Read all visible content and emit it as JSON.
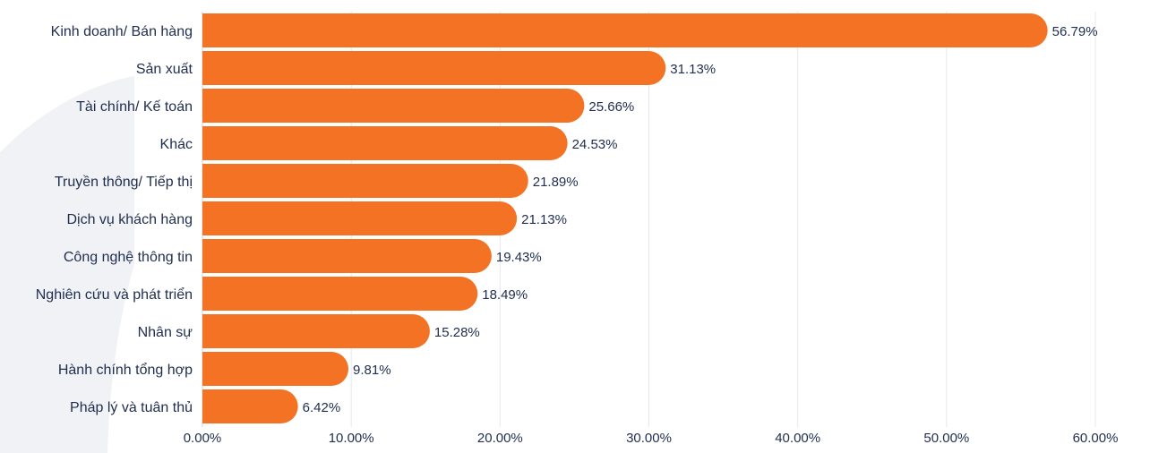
{
  "chart_data": {
    "type": "bar",
    "orientation": "horizontal",
    "categories": [
      "Kinh doanh/ Bán hàng",
      "Sản xuất",
      "Tài chính/ Kế toán",
      "Khác",
      "Truyền thông/ Tiếp thị",
      "Dịch vụ khách hàng",
      "Công nghệ thông tin",
      "Nghiên cứu và phát triển",
      "Nhân sự",
      "Hành chính tổng hợp",
      "Pháp lý và tuân thủ"
    ],
    "values": [
      56.79,
      31.13,
      25.66,
      24.53,
      21.89,
      21.13,
      19.43,
      18.49,
      15.28,
      9.81,
      6.42
    ],
    "value_labels": [
      "56.79%",
      "31.13%",
      "25.66%",
      "24.53%",
      "21.89%",
      "21.13%",
      "19.43%",
      "18.49%",
      "15.28%",
      "9.81%",
      "6.42%"
    ],
    "xlim": [
      0,
      60
    ],
    "x_ticks": [
      0,
      10,
      20,
      30,
      40,
      50,
      60
    ],
    "x_tick_labels": [
      "0.00%",
      "10.00%",
      "20.00%",
      "30.00%",
      "40.00%",
      "50.00%",
      "60.00%"
    ],
    "grid": "vertical",
    "legend": "none",
    "title": "",
    "xlabel": "",
    "ylabel": "",
    "colors": {
      "bar": "#f47224",
      "text": "#1f2d4e",
      "grid": "#e6e8ee",
      "decoration": "#f1f2f5"
    }
  }
}
